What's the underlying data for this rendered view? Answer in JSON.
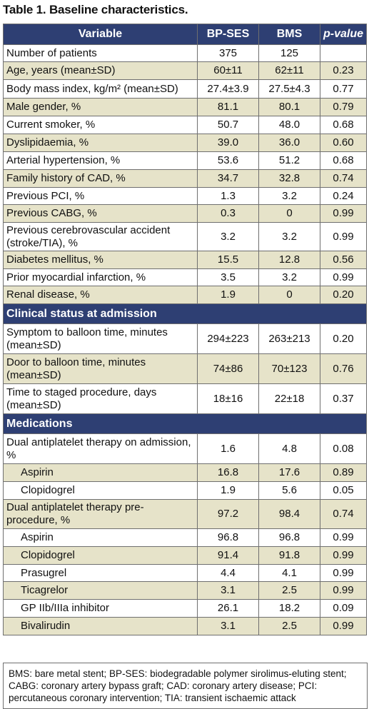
{
  "title": "Table 1. Baseline characteristics.",
  "header": {
    "variable": "Variable",
    "bpses": "BP-SES",
    "bms": "BMS",
    "pvalue": "p-value"
  },
  "rows": [
    {
      "kind": "row",
      "label": "Number of patients",
      "bpses": "375",
      "bms": "125",
      "p": "",
      "h": 24
    },
    {
      "kind": "row",
      "label": "Age, years (mean±SD)",
      "bpses": "60±11",
      "bms": "62±11",
      "p": "0.23",
      "h": 25
    },
    {
      "kind": "row",
      "label": "Body mass index, kg/m² (mean±SD)",
      "bpses": "27.4±3.9",
      "bms": "27.5±4.3",
      "p": "0.77",
      "h": 26
    },
    {
      "kind": "row",
      "label": "Male gender, %",
      "bpses": "81.1",
      "bms": "80.1",
      "p": "0.79",
      "h": 25
    },
    {
      "kind": "row",
      "label": "Current smoker, %",
      "bpses": "50.7",
      "bms": "48.0",
      "p": "0.68",
      "h": 25
    },
    {
      "kind": "row",
      "label": "Dyslipidaemia, %",
      "bpses": "39.0",
      "bms": "36.0",
      "p": "0.60",
      "h": 25
    },
    {
      "kind": "row",
      "label": "Arterial hypertension, %",
      "bpses": "53.6",
      "bms": "51.2",
      "p": "0.68",
      "h": 25
    },
    {
      "kind": "row",
      "label": "Family history of CAD, %",
      "bpses": "34.7",
      "bms": "32.8",
      "p": "0.74",
      "h": 25
    },
    {
      "kind": "row",
      "label": "Previous PCI, %",
      "bpses": "1.3",
      "bms": "3.2",
      "p": "0.24",
      "h": 24
    },
    {
      "kind": "row",
      "label": "Previous CABG, %",
      "bpses": "0.3",
      "bms": "0",
      "p": "0.99",
      "h": 25
    },
    {
      "kind": "row",
      "label": "Previous cerebrovascular accident (stroke/TIA), %",
      "bpses": "3.2",
      "bms": "3.2",
      "p": "0.99",
      "h": 40
    },
    {
      "kind": "row",
      "label": "Diabetes mellitus, %",
      "bpses": "15.5",
      "bms": "12.8",
      "p": "0.56",
      "h": 25
    },
    {
      "kind": "row",
      "label": "Prior myocardial infarction, %",
      "bpses": "3.5",
      "bms": "3.2",
      "p": "0.99",
      "h": 24
    },
    {
      "kind": "row",
      "label": "Renal disease, %",
      "bpses": "1.9",
      "bms": "0",
      "p": "0.20",
      "h": 25
    },
    {
      "kind": "section",
      "label": "Clinical status at admission"
    },
    {
      "kind": "row",
      "label": "Symptom to balloon time, minutes (mean±SD)",
      "bpses": "294±223",
      "bms": "263±213",
      "p": "0.20",
      "h": 42
    },
    {
      "kind": "row",
      "label": "Door to balloon time, minutes (mean±SD)",
      "bpses": "74±86",
      "bms": "70±123",
      "p": "0.76",
      "h": 42
    },
    {
      "kind": "row",
      "label": "Time to staged procedure, days (mean±SD)",
      "bpses": "18±16",
      "bms": "22±18",
      "p": "0.37",
      "h": 42
    },
    {
      "kind": "section",
      "label": "Medications"
    },
    {
      "kind": "row",
      "label": "Dual antiplatelet therapy on admission, %",
      "bpses": "1.6",
      "bms": "4.8",
      "p": "0.08",
      "h": 42
    },
    {
      "kind": "row",
      "indent": true,
      "label": "Aspirin",
      "bpses": "16.8",
      "bms": "17.6",
      "p": "0.89",
      "h": 25
    },
    {
      "kind": "row",
      "indent": true,
      "label": "Clopidogrel",
      "bpses": "1.9",
      "bms": "5.6",
      "p": "0.05",
      "h": 25
    },
    {
      "kind": "row",
      "label": "Dual antiplatelet therapy pre-procedure, %",
      "bpses": "97.2",
      "bms": "98.4",
      "p": "0.74",
      "h": 41
    },
    {
      "kind": "row",
      "indent": true,
      "label": "Aspirin",
      "bpses": "96.8",
      "bms": "96.8",
      "p": "0.99",
      "h": 25
    },
    {
      "kind": "row",
      "indent": true,
      "label": "Clopidogrel",
      "bpses": "91.4",
      "bms": "91.8",
      "p": "0.99",
      "h": 25
    },
    {
      "kind": "row",
      "indent": true,
      "label": "Prasugrel",
      "bpses": "4.4",
      "bms": "4.1",
      "p": "0.99",
      "h": 24
    },
    {
      "kind": "row",
      "indent": true,
      "label": "Ticagrelor",
      "bpses": "3.1",
      "bms": "2.5",
      "p": "0.99",
      "h": 25
    },
    {
      "kind": "row",
      "indent": true,
      "label": "GP IIb/IIIa inhibitor",
      "bpses": "26.1",
      "bms": "18.2",
      "p": "0.09",
      "h": 25
    },
    {
      "kind": "row",
      "indent": true,
      "label": "Bivalirudin",
      "bpses": "3.1",
      "bms": "2.5",
      "p": "0.99",
      "h": 25
    }
  ],
  "footnote": "BMS: bare metal stent; BP-SES: biodegradable polymer sirolimus-eluting stent; CABG: coronary artery bypass graft; CAD: coronary artery disease; PCI: percutaneous coronary intervention; TIA: transient ischaemic attack"
}
